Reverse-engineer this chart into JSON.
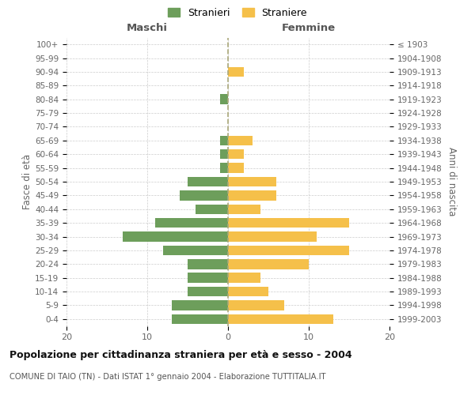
{
  "age_groups": [
    "0-4",
    "5-9",
    "10-14",
    "15-19",
    "20-24",
    "25-29",
    "30-34",
    "35-39",
    "40-44",
    "45-49",
    "50-54",
    "55-59",
    "60-64",
    "65-69",
    "70-74",
    "75-79",
    "80-84",
    "85-89",
    "90-94",
    "95-99",
    "100+"
  ],
  "birth_years": [
    "1999-2003",
    "1994-1998",
    "1989-1993",
    "1984-1988",
    "1979-1983",
    "1974-1978",
    "1969-1973",
    "1964-1968",
    "1959-1963",
    "1954-1958",
    "1949-1953",
    "1944-1948",
    "1939-1943",
    "1934-1938",
    "1929-1933",
    "1924-1928",
    "1919-1923",
    "1914-1918",
    "1909-1913",
    "1904-1908",
    "≤ 1903"
  ],
  "maschi": [
    7,
    7,
    5,
    5,
    5,
    8,
    13,
    9,
    4,
    6,
    5,
    1,
    1,
    1,
    0,
    0,
    1,
    0,
    0,
    0,
    0
  ],
  "femmine": [
    13,
    7,
    5,
    4,
    10,
    15,
    11,
    15,
    4,
    6,
    6,
    2,
    2,
    3,
    0,
    0,
    0,
    0,
    2,
    0,
    0
  ],
  "color_maschi": "#6d9e5b",
  "color_femmine": "#f5c04a",
  "title": "Popolazione per cittadinanza straniera per età e sesso - 2004",
  "subtitle": "COMUNE DI TAIO (TN) - Dati ISTAT 1° gennaio 2004 - Elaborazione TUTTITALIA.IT",
  "xlabel_left": "Maschi",
  "xlabel_right": "Femmine",
  "ylabel_left": "Fasce di età",
  "ylabel_right": "Anni di nascita",
  "xlim": 20,
  "legend_stranieri": "Stranieri",
  "legend_straniere": "Straniere",
  "background_color": "#ffffff"
}
